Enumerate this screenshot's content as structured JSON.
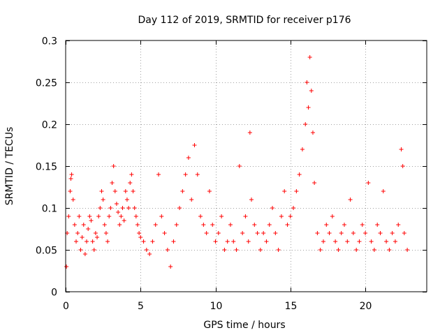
{
  "chart_data": {
    "type": "scatter",
    "title": "Day 112 of 2019, SRMTID for receiver p176",
    "xlabel": "GPS time / hours",
    "ylabel": "SRMTID / TECUs",
    "xlim": [
      0,
      24.1
    ],
    "ylim": [
      0,
      0.3
    ],
    "xticks": [
      0,
      5,
      10,
      15,
      20
    ],
    "yticks": [
      0,
      0.05,
      0.1,
      0.15,
      0.2,
      0.25,
      0.3
    ],
    "xtick_labels": [
      "0",
      "5",
      "10",
      "15",
      "20"
    ],
    "ytick_labels": [
      "0",
      "0.05",
      "0.1",
      "0.15",
      "0.2",
      "0.25",
      "0.3"
    ],
    "grid": true,
    "marker": "+",
    "color": "#ff0000",
    "series": [
      {
        "name": "SRMTID",
        "points": [
          [
            0.05,
            0.03
          ],
          [
            0.1,
            0.07
          ],
          [
            0.2,
            0.09
          ],
          [
            0.3,
            0.12
          ],
          [
            0.35,
            0.135
          ],
          [
            0.4,
            0.14
          ],
          [
            0.5,
            0.11
          ],
          [
            0.6,
            0.08
          ],
          [
            0.7,
            0.06
          ],
          [
            0.8,
            0.07
          ],
          [
            0.9,
            0.09
          ],
          [
            1.0,
            0.05
          ],
          [
            1.1,
            0.065
          ],
          [
            1.2,
            0.08
          ],
          [
            1.3,
            0.045
          ],
          [
            1.4,
            0.06
          ],
          [
            1.5,
            0.075
          ],
          [
            1.6,
            0.09
          ],
          [
            1.7,
            0.085
          ],
          [
            1.8,
            0.06
          ],
          [
            1.9,
            0.05
          ],
          [
            2.0,
            0.07
          ],
          [
            2.1,
            0.065
          ],
          [
            2.2,
            0.09
          ],
          [
            2.3,
            0.1
          ],
          [
            2.4,
            0.12
          ],
          [
            2.5,
            0.11
          ],
          [
            2.6,
            0.08
          ],
          [
            2.7,
            0.07
          ],
          [
            2.8,
            0.06
          ],
          [
            2.9,
            0.09
          ],
          [
            3.0,
            0.1
          ],
          [
            3.1,
            0.13
          ],
          [
            3.2,
            0.15
          ],
          [
            3.3,
            0.12
          ],
          [
            3.4,
            0.105
          ],
          [
            3.5,
            0.095
          ],
          [
            3.6,
            0.08
          ],
          [
            3.7,
            0.09
          ],
          [
            3.8,
            0.1
          ],
          [
            3.9,
            0.085
          ],
          [
            4.0,
            0.12
          ],
          [
            4.1,
            0.11
          ],
          [
            4.2,
            0.1
          ],
          [
            4.3,
            0.13
          ],
          [
            4.4,
            0.14
          ],
          [
            4.5,
            0.12
          ],
          [
            4.6,
            0.1
          ],
          [
            4.7,
            0.09
          ],
          [
            4.8,
            0.08
          ],
          [
            4.9,
            0.07
          ],
          [
            5.0,
            0.065
          ],
          [
            5.2,
            0.06
          ],
          [
            5.4,
            0.05
          ],
          [
            5.6,
            0.045
          ],
          [
            5.8,
            0.06
          ],
          [
            6.0,
            0.08
          ],
          [
            6.2,
            0.14
          ],
          [
            6.4,
            0.09
          ],
          [
            6.6,
            0.07
          ],
          [
            6.8,
            0.05
          ],
          [
            7.0,
            0.03
          ],
          [
            7.2,
            0.06
          ],
          [
            7.4,
            0.08
          ],
          [
            7.6,
            0.1
          ],
          [
            7.8,
            0.12
          ],
          [
            8.0,
            0.14
          ],
          [
            8.2,
            0.16
          ],
          [
            8.4,
            0.11
          ],
          [
            8.6,
            0.175
          ],
          [
            8.8,
            0.14
          ],
          [
            9.0,
            0.09
          ],
          [
            9.2,
            0.08
          ],
          [
            9.4,
            0.07
          ],
          [
            9.6,
            0.12
          ],
          [
            9.8,
            0.08
          ],
          [
            10.0,
            0.06
          ],
          [
            10.2,
            0.07
          ],
          [
            10.4,
            0.09
          ],
          [
            10.6,
            0.05
          ],
          [
            10.8,
            0.06
          ],
          [
            11.0,
            0.08
          ],
          [
            11.2,
            0.06
          ],
          [
            11.4,
            0.05
          ],
          [
            11.6,
            0.15
          ],
          [
            11.8,
            0.07
          ],
          [
            12.0,
            0.09
          ],
          [
            12.2,
            0.06
          ],
          [
            12.3,
            0.19
          ],
          [
            12.4,
            0.11
          ],
          [
            12.6,
            0.08
          ],
          [
            12.8,
            0.07
          ],
          [
            13.0,
            0.05
          ],
          [
            13.2,
            0.07
          ],
          [
            13.4,
            0.06
          ],
          [
            13.6,
            0.08
          ],
          [
            13.8,
            0.1
          ],
          [
            14.0,
            0.07
          ],
          [
            14.2,
            0.05
          ],
          [
            14.4,
            0.09
          ],
          [
            14.6,
            0.12
          ],
          [
            14.8,
            0.08
          ],
          [
            15.0,
            0.09
          ],
          [
            15.2,
            0.1
          ],
          [
            15.4,
            0.12
          ],
          [
            15.6,
            0.14
          ],
          [
            15.8,
            0.17
          ],
          [
            16.0,
            0.2
          ],
          [
            16.1,
            0.25
          ],
          [
            16.2,
            0.22
          ],
          [
            16.3,
            0.28
          ],
          [
            16.4,
            0.24
          ],
          [
            16.5,
            0.19
          ],
          [
            16.6,
            0.13
          ],
          [
            16.8,
            0.07
          ],
          [
            17.0,
            0.05
          ],
          [
            17.2,
            0.06
          ],
          [
            17.4,
            0.08
          ],
          [
            17.6,
            0.07
          ],
          [
            17.8,
            0.09
          ],
          [
            18.0,
            0.06
          ],
          [
            18.2,
            0.05
          ],
          [
            18.4,
            0.07
          ],
          [
            18.6,
            0.08
          ],
          [
            18.8,
            0.06
          ],
          [
            19.0,
            0.11
          ],
          [
            19.2,
            0.07
          ],
          [
            19.4,
            0.05
          ],
          [
            19.6,
            0.06
          ],
          [
            19.8,
            0.08
          ],
          [
            20.0,
            0.07
          ],
          [
            20.2,
            0.13
          ],
          [
            20.4,
            0.06
          ],
          [
            20.6,
            0.05
          ],
          [
            20.8,
            0.08
          ],
          [
            21.0,
            0.07
          ],
          [
            21.2,
            0.12
          ],
          [
            21.4,
            0.06
          ],
          [
            21.6,
            0.05
          ],
          [
            21.8,
            0.07
          ],
          [
            22.0,
            0.06
          ],
          [
            22.2,
            0.08
          ],
          [
            22.4,
            0.17
          ],
          [
            22.5,
            0.15
          ],
          [
            22.6,
            0.07
          ],
          [
            22.8,
            0.05
          ]
        ]
      }
    ]
  }
}
